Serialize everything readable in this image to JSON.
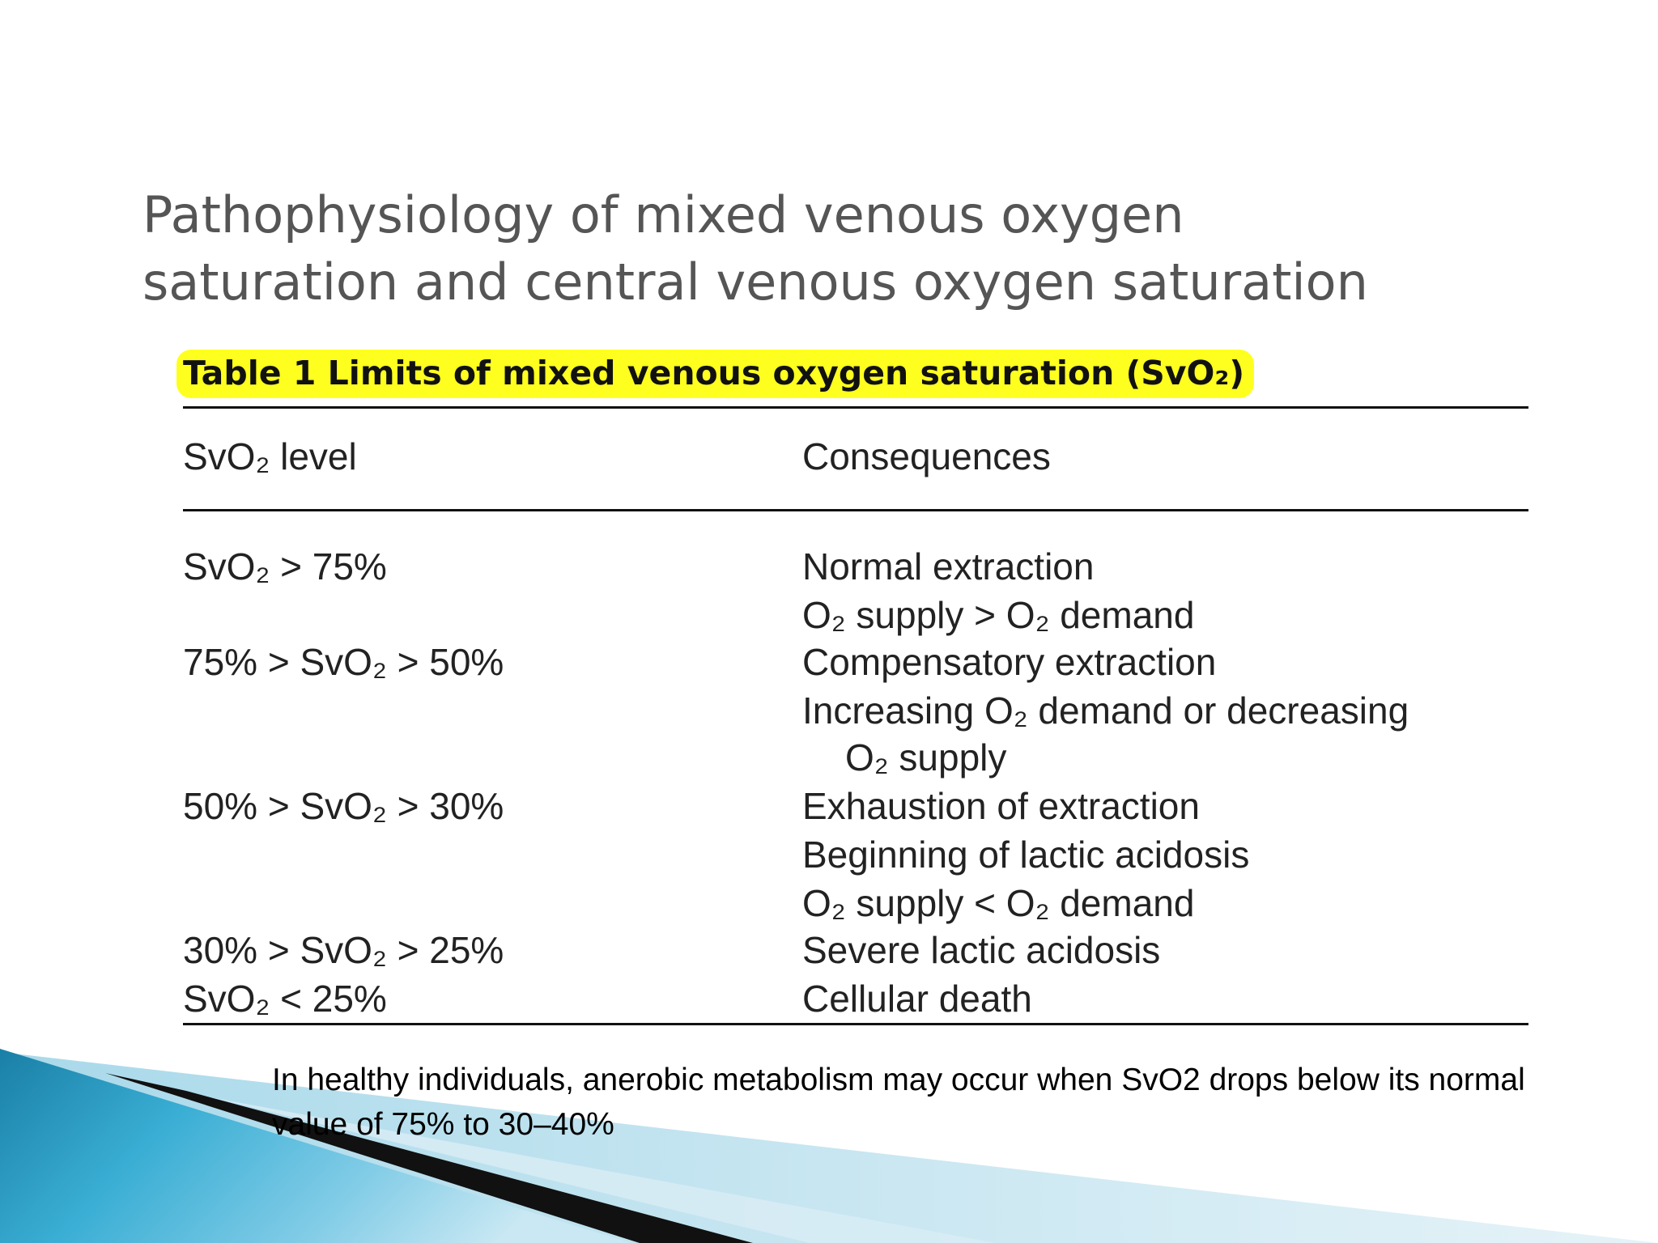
{
  "slide": {
    "title_line1": "Pathophysiology of mixed venous oxygen",
    "title_line2": "saturation and central venous oxygen saturation"
  },
  "table": {
    "caption": "Table 1  Limits of mixed venous oxygen saturation (SvO₂)",
    "header": {
      "level": "SvO₂ level",
      "consequences": "Consequences"
    },
    "rows": [
      {
        "level": "SvO₂ > 75%",
        "consequences": [
          "Normal extraction",
          "O₂ supply > O₂ demand"
        ]
      },
      {
        "level": "75% > SvO₂ > 50%",
        "consequences": [
          "Compensatory extraction",
          "Increasing O₂ demand or decreasing",
          "O₂ supply"
        ]
      },
      {
        "level": "50% > SvO₂ > 30%",
        "consequences": [
          "Exhaustion of extraction",
          "Beginning of lactic acidosis",
          "O₂ supply < O₂ demand"
        ]
      },
      {
        "level": "30% > SvO₂ > 25%",
        "consequences": [
          "Severe lactic acidosis"
        ]
      },
      {
        "level": "SvO₂ < 25%",
        "consequences": [
          "Cellular death"
        ]
      }
    ]
  },
  "footnote": "In healthy individuals, anerobic metabolism may occur when SvO2 drops below its normal value of 75% to 30–40%",
  "colors": {
    "highlight": "#ffff1f",
    "title_text": "#555555",
    "wave_teal": "#2a9ec4",
    "wave_dark": "#111111"
  }
}
